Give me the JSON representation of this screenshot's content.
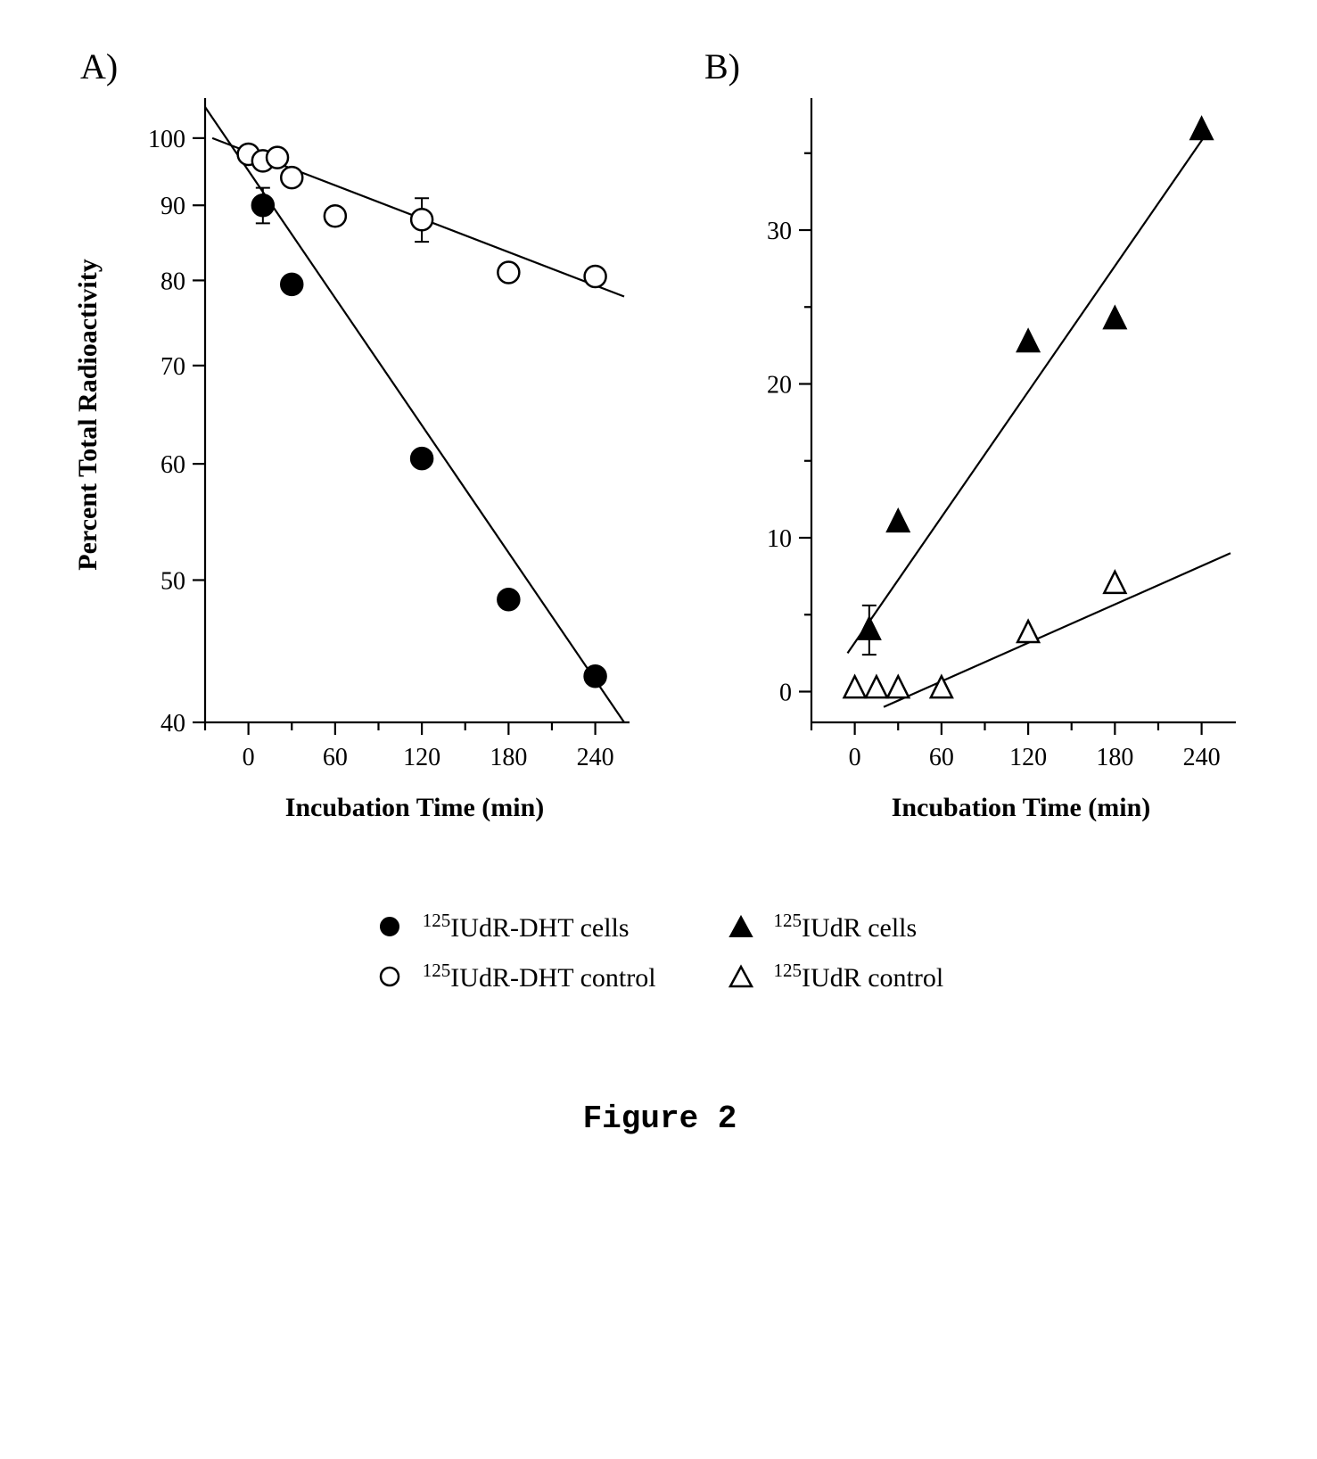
{
  "figure": {
    "caption": "Figure 2"
  },
  "panelA": {
    "type": "scatter",
    "panel_label": "A)",
    "xlabel": "Incubation Time (min)",
    "ylabel": "Percent Total Radioactivity",
    "label_fontsize": 30,
    "tick_fontsize": 28,
    "xlim": [
      -30,
      260
    ],
    "ylim_logish": [
      40,
      105
    ],
    "yscale": "log_visual",
    "xticks": [
      0,
      60,
      120,
      180,
      240
    ],
    "yticks": [
      40,
      50,
      60,
      70,
      80,
      90,
      100
    ],
    "axis_stroke": "#000000",
    "axis_stroke_width": 2.2,
    "marker_radius": 12,
    "background_color": "#ffffff",
    "series": {
      "filled_circles": {
        "marker": "circle",
        "fill": "#000000",
        "stroke": "#000000",
        "points": [
          {
            "x": 10,
            "y": 90,
            "err": 2.5
          },
          {
            "x": 30,
            "y": 79.5
          },
          {
            "x": 120,
            "y": 60.5
          },
          {
            "x": 180,
            "y": 48.5
          },
          {
            "x": 240,
            "y": 43
          }
        ],
        "fit_line": {
          "from": {
            "x": -30,
            "y": 105
          },
          "to": {
            "x": 260,
            "y": 40
          },
          "stroke": "#000000",
          "width": 2.2
        },
        "legend_html": "<sup>125</sup>IUdR-DHT cells"
      },
      "open_circles": {
        "marker": "circle",
        "fill": "#ffffff",
        "stroke": "#000000",
        "points": [
          {
            "x": 0,
            "y": 97.5
          },
          {
            "x": 10,
            "y": 96.5
          },
          {
            "x": 20,
            "y": 97
          },
          {
            "x": 30,
            "y": 94
          },
          {
            "x": 60,
            "y": 88.5
          },
          {
            "x": 120,
            "y": 88,
            "err": 3
          },
          {
            "x": 180,
            "y": 81
          },
          {
            "x": 240,
            "y": 80.5
          }
        ],
        "fit_line": {
          "from": {
            "x": -25,
            "y": 100
          },
          "to": {
            "x": 260,
            "y": 78
          },
          "stroke": "#000000",
          "width": 2.2
        },
        "legend_html": "<sup>125</sup>IUdR-DHT control"
      }
    }
  },
  "panelB": {
    "type": "scatter",
    "panel_label": "B)",
    "xlabel": "Incubation Time (min)",
    "label_fontsize": 30,
    "tick_fontsize": 28,
    "xlim": [
      -30,
      260
    ],
    "ylim": [
      -2,
      38
    ],
    "xticks": [
      0,
      60,
      120,
      180,
      240
    ],
    "yticks": [
      0,
      10,
      20,
      30
    ],
    "axis_stroke": "#000000",
    "axis_stroke_width": 2.2,
    "marker_size": 24,
    "background_color": "#ffffff",
    "series": {
      "filled_triangles": {
        "marker": "triangle",
        "fill": "#000000",
        "stroke": "#000000",
        "points": [
          {
            "x": 10,
            "y": 4,
            "err": 1.6
          },
          {
            "x": 30,
            "y": 11
          },
          {
            "x": 120,
            "y": 22.7
          },
          {
            "x": 180,
            "y": 24.2
          },
          {
            "x": 240,
            "y": 36.5
          }
        ],
        "fit_line": {
          "from": {
            "x": -5,
            "y": 2.5
          },
          "to": {
            "x": 245,
            "y": 36.5
          },
          "stroke": "#000000",
          "width": 2.2
        },
        "legend_html": "<sup>125</sup>IUdR cells"
      },
      "open_triangles": {
        "marker": "triangle",
        "fill": "#ffffff",
        "stroke": "#000000",
        "points": [
          {
            "x": 0,
            "y": 0.2
          },
          {
            "x": 15,
            "y": 0.2
          },
          {
            "x": 30,
            "y": 0.2
          },
          {
            "x": 60,
            "y": 0.2
          },
          {
            "x": 120,
            "y": 3.8
          },
          {
            "x": 180,
            "y": 7
          }
        ],
        "fit_line": {
          "from": {
            "x": 20,
            "y": -1
          },
          "to": {
            "x": 260,
            "y": 9
          },
          "stroke": "#000000",
          "width": 2.2
        },
        "legend_html": "<sup>125</sup>IUdR control"
      }
    }
  }
}
